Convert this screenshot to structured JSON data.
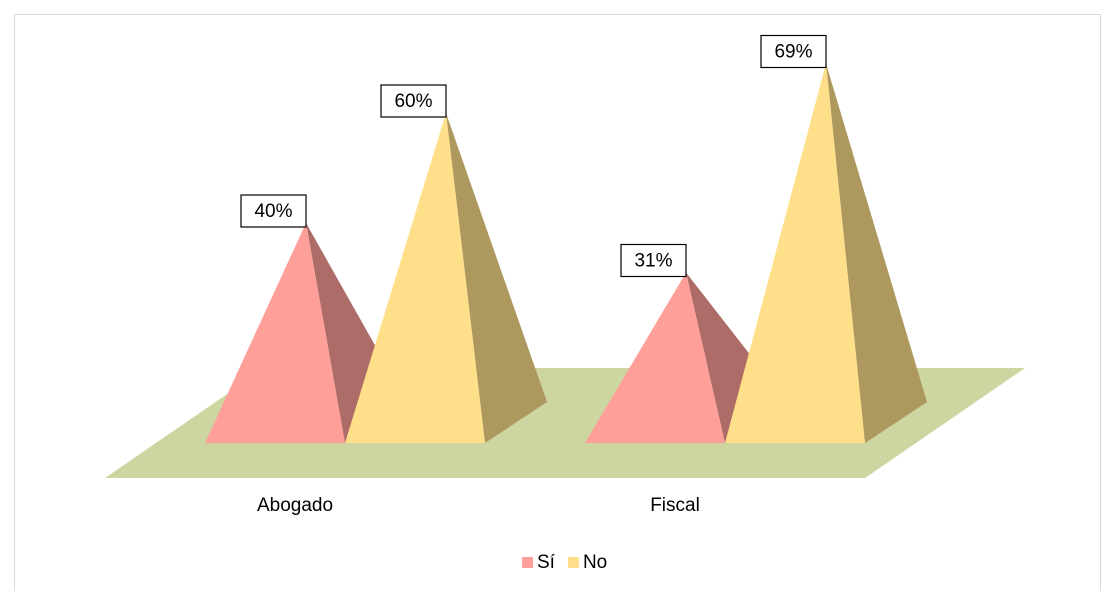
{
  "chart_data": {
    "type": "pyramid",
    "categories": [
      "Abogado",
      "Fiscal"
    ],
    "series": [
      {
        "name": "Sí",
        "color": "#ff9f99",
        "values": [
          40,
          31
        ],
        "value_labels": [
          "40%",
          "31%"
        ]
      },
      {
        "name": "No",
        "color": "#ffdf8a",
        "values": [
          60,
          69
        ],
        "value_labels": [
          "60%",
          "69%"
        ]
      }
    ],
    "legend": "bottom"
  }
}
